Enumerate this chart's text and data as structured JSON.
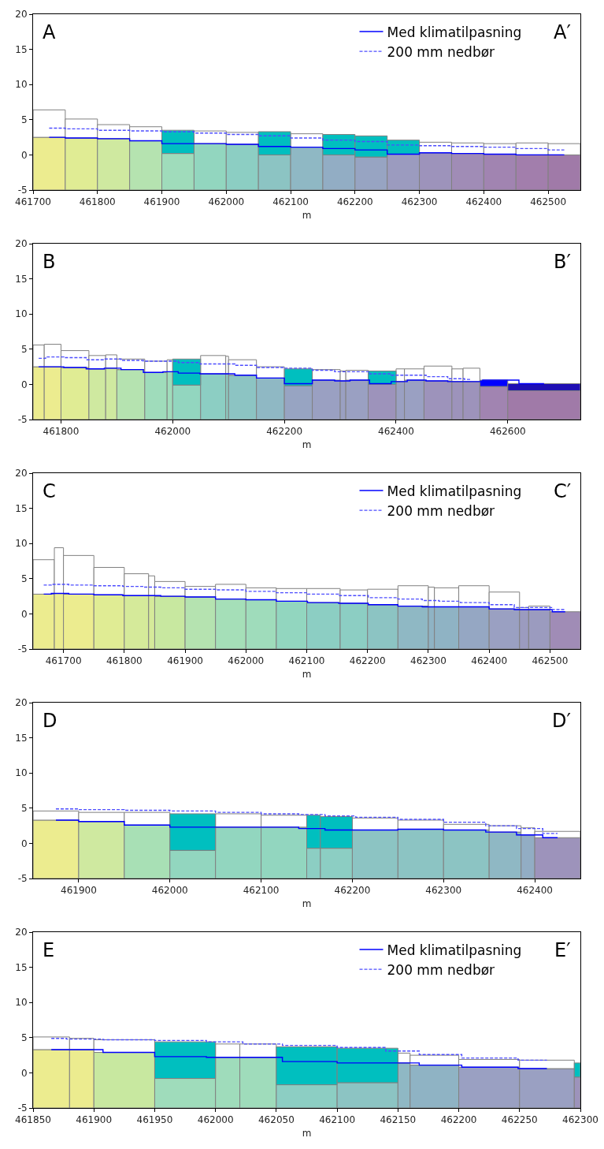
{
  "chart_data": [
    {
      "type": "bar",
      "xlabel": "m",
      "annotations": [
        "A",
        "A′"
      ],
      "legend": "top right",
      "xlim": [
        461700,
        462550
      ],
      "xticks": [
        461700,
        461800,
        461900,
        462000,
        462100,
        462200,
        462300,
        462400,
        462500
      ],
      "ylim": [
        -5,
        20
      ],
      "yticks": [
        -5,
        0,
        5,
        10,
        15,
        20
      ],
      "x": [
        461725,
        461775,
        461825,
        461875,
        461925,
        461975,
        462025,
        462075,
        462125,
        462175,
        462225,
        462275,
        462325,
        462375,
        462425,
        462475,
        462525
      ],
      "series": [
        {
          "colors": [
            "#ecec8f",
            "#e0ec94",
            "#cfe9a0",
            "#b5e3b0",
            "#9fdcbb",
            "#92d6bf",
            "#8ccec3",
            "#8cc4c3",
            "#8fb8c4",
            "#92adc4",
            "#97a4c2",
            "#9b9bbf",
            "#9d93bb",
            "#a08cb6",
            "#a184b1",
            "#a27eac",
            "#a07aa8"
          ],
          "base": [
            -5,
            -5,
            -5,
            -5,
            -5,
            -5,
            -5,
            -5,
            -5,
            -5,
            -5,
            -5,
            -5,
            -5,
            -5,
            -5,
            -5
          ],
          "values": [
            7.5,
            7.4,
            7.3,
            7.0,
            5.2,
            6.6,
            6.5,
            5.0,
            6.1,
            5.0,
            4.7,
            5.1,
            5.3,
            5.2,
            5.1,
            5.0,
            5.0
          ]
        },
        {
          "color": "#ffffff",
          "base": [
            2.5,
            2.4,
            2.3,
            2.0,
            null,
            1.6,
            1.5,
            null,
            1.1,
            null,
            null,
            null,
            0.3,
            0.2,
            0.1,
            0.0,
            0.0
          ],
          "values": [
            3.9,
            2.7,
            2.0,
            2.0,
            null,
            1.8,
            1.7,
            null,
            1.9,
            null,
            null,
            null,
            1.5,
            1.5,
            1.5,
            1.7,
            1.6
          ]
        },
        {
          "color": "#00bfbf",
          "base": [
            null,
            null,
            null,
            null,
            0.2,
            null,
            null,
            0.0,
            null,
            0.0,
            -0.3,
            0.1,
            null,
            null,
            null,
            null,
            null
          ],
          "values": [
            null,
            null,
            null,
            null,
            3.3,
            null,
            null,
            3.3,
            null,
            2.9,
            3.0,
            2.0,
            null,
            null,
            null,
            null,
            null
          ]
        },
        {
          "type": "step",
          "name": "Med klimatilpasning",
          "color": "#0000ff",
          "line_style": "solid",
          "values": [
            2.5,
            2.4,
            2.3,
            2.0,
            1.6,
            1.6,
            1.5,
            1.2,
            1.1,
            0.9,
            0.7,
            0.1,
            0.3,
            0.2,
            0.1,
            0.0,
            0.0
          ]
        },
        {
          "type": "step",
          "name": "200 mm nedbør",
          "color": "#4d4dff",
          "line_style": "dashed",
          "values": [
            3.8,
            3.7,
            3.5,
            3.4,
            3.3,
            3.1,
            2.9,
            2.7,
            2.4,
            2.1,
            1.9,
            1.4,
            1.3,
            1.2,
            1.1,
            0.9,
            0.7
          ]
        }
      ]
    },
    {
      "type": "bar",
      "xlabel": "m",
      "annotations": [
        "B",
        "B′"
      ],
      "xlim": [
        461750,
        462730
      ],
      "xticks": [
        461800,
        462000,
        462200,
        462400,
        462600
      ],
      "ylim": [
        -5,
        20
      ],
      "yticks": [
        -5,
        0,
        5,
        10,
        15,
        20
      ],
      "x": [
        461760,
        461785,
        461825,
        461865,
        461890,
        461925,
        461970,
        461995,
        462025,
        462072.5,
        462097.5,
        462125,
        462175,
        462225,
        462275,
        462305,
        462330,
        462375,
        462407.5,
        462432.5,
        462475,
        462510,
        462535,
        462575,
        462665
      ],
      "series": [
        {
          "colors": [
            "#ecec8f",
            "#ecec8f",
            "#e0ec94",
            "#cfe9a0",
            "#cfe9a0",
            "#b5e3b0",
            "#9fdcbb",
            "#9fdcbb",
            "#92d6bf",
            "#8ccec3",
            "#8ccec3",
            "#8cc4c3",
            "#8fb8c4",
            "#97a4c2",
            "#9aa0c2",
            "#9aa0c2",
            "#9aa0c2",
            "#9d93bb",
            "#9aa0c2",
            "#9aa0c2",
            "#9d93bb",
            "#9d93bb",
            "#9d93bb",
            "#a184b1",
            "#a07aa8"
          ],
          "base": [
            -5,
            -5,
            -5,
            -5,
            -5,
            -5,
            -5,
            -5,
            -5,
            -5,
            -5,
            -5,
            -5,
            -5,
            -5,
            -5,
            -5,
            -5,
            -5,
            -5,
            -5,
            -5,
            -5,
            -5,
            -5
          ],
          "values": [
            7.5,
            7.5,
            7.4,
            7.2,
            7.3,
            7.1,
            6.7,
            6.8,
            4.9,
            6.5,
            6.5,
            6.3,
            5.9,
            4.8,
            5.6,
            5.5,
            5.6,
            5.0,
            5.4,
            5.6,
            5.5,
            5.4,
            5.4,
            4.7,
            4.1
          ]
        },
        {
          "color": "#ffffff",
          "base": [
            2.5,
            2.5,
            2.4,
            2.2,
            2.3,
            2.1,
            1.7,
            1.8,
            null,
            1.5,
            1.5,
            1.3,
            0.9,
            null,
            0.6,
            0.5,
            0.6,
            null,
            0.4,
            0.6,
            0.5,
            0.4,
            0.4,
            null,
            null
          ],
          "values": [
            3.1,
            3.2,
            2.4,
            1.9,
            1.9,
            1.5,
            1.6,
            1.7,
            null,
            2.6,
            2.5,
            2.2,
            1.6,
            null,
            1.5,
            1.4,
            1.4,
            null,
            1.8,
            1.6,
            2.1,
            1.8,
            1.9,
            null,
            null
          ]
        },
        {
          "colors": [
            null,
            null,
            null,
            null,
            null,
            null,
            null,
            null,
            "#00bfbf",
            null,
            null,
            null,
            null,
            "#00bfbf",
            null,
            null,
            null,
            "#00bfbf",
            null,
            null,
            null,
            null,
            null,
            "#0000ff",
            "#1f0fb4"
          ],
          "base": [
            null,
            null,
            null,
            null,
            null,
            null,
            null,
            null,
            -0.1,
            null,
            null,
            null,
            null,
            -0.2,
            null,
            null,
            null,
            0.0,
            null,
            null,
            null,
            null,
            null,
            -0.3,
            -0.9
          ],
          "values": [
            null,
            null,
            null,
            null,
            null,
            null,
            null,
            null,
            3.7,
            null,
            null,
            null,
            null,
            2.4,
            null,
            null,
            null,
            1.9,
            null,
            null,
            null,
            null,
            null,
            0.9,
            1.0
          ]
        },
        {
          "type": "step",
          "color": "#0000ff",
          "line_style": "solid",
          "values": [
            2.5,
            2.5,
            2.4,
            2.2,
            2.3,
            2.1,
            1.7,
            1.8,
            1.6,
            1.5,
            1.5,
            1.3,
            0.9,
            0.1,
            0.6,
            0.5,
            0.6,
            0.1,
            0.4,
            0.6,
            0.5,
            0.4,
            0.4,
            0.6,
            0.1
          ]
        },
        {
          "type": "step",
          "color": "#4d4dff",
          "line_style": "dashed",
          "values": [
            3.7,
            3.9,
            3.8,
            3.5,
            3.6,
            3.4,
            3.3,
            3.3,
            3.1,
            2.9,
            2.9,
            2.7,
            2.4,
            2.3,
            2.0,
            1.8,
            1.8,
            1.5,
            1.3,
            1.3,
            1.1,
            0.8,
            0.7,
            null,
            null
          ]
        }
      ]
    },
    {
      "type": "bar",
      "xlabel": "m",
      "annotations": [
        "C",
        "C′"
      ],
      "legend": "top right",
      "xlim": [
        461650,
        462550
      ],
      "xticks": [
        461700,
        461800,
        461900,
        462000,
        462100,
        462200,
        462300,
        462400,
        462500
      ],
      "ylim": [
        -5,
        20
      ],
      "yticks": [
        -5,
        0,
        5,
        10,
        15,
        20
      ],
      "x": [
        461667.5,
        461692.5,
        461725,
        461775,
        461820,
        461845,
        461875,
        461925,
        461975,
        462025,
        462075,
        462127.5,
        462177.5,
        462225,
        462275,
        462305,
        462330,
        462375,
        462425,
        462457.5,
        462482.5,
        462525
      ],
      "series": [
        {
          "colors": [
            "#ecec8f",
            "#ecec8f",
            "#ecec8f",
            "#e0ec94",
            "#d5ea9a",
            "#d5ea9a",
            "#c8e8a0",
            "#b5e3b0",
            "#a5dfb8",
            "#9fdcbb",
            "#92d6bf",
            "#8ccec3",
            "#8ccec3",
            "#8cc4c3",
            "#8fb8c4",
            "#8fb3c4",
            "#8fb3c4",
            "#95a7c3",
            "#9aa0c2",
            "#9b9bbf",
            "#9b9bbf",
            "#a08cb6"
          ],
          "base": [
            -5,
            -5,
            -5,
            -5,
            -5,
            -5,
            -5,
            -5,
            -5,
            -5,
            -5,
            -5,
            -5,
            -5,
            -5,
            -5,
            -5,
            -5,
            -5,
            -5,
            -5,
            -5
          ],
          "values": [
            7.8,
            7.9,
            7.8,
            7.7,
            7.6,
            7.6,
            7.5,
            7.4,
            7.1,
            7.0,
            6.8,
            6.6,
            6.5,
            6.3,
            6.1,
            6.0,
            6.0,
            6.0,
            5.7,
            5.6,
            5.6,
            5.3
          ]
        },
        {
          "color": "#ffffff",
          "base": [
            2.8,
            2.9,
            2.8,
            2.7,
            2.6,
            2.6,
            2.5,
            2.4,
            2.1,
            2.0,
            1.8,
            1.6,
            1.5,
            1.3,
            1.1,
            1.0,
            1.0,
            1.0,
            0.7,
            0.6,
            0.6,
            null
          ],
          "values": [
            4.9,
            6.5,
            5.5,
            3.9,
            3.1,
            2.8,
            2.1,
            1.5,
            2.1,
            1.7,
            1.8,
            2.0,
            1.9,
            2.2,
            2.9,
            2.8,
            2.7,
            3.0,
            2.4,
            0.3,
            0.5,
            null
          ]
        },
        {
          "type": "step",
          "name": "Med klimatilpasning",
          "color": "#0000ff",
          "line_style": "solid",
          "values": [
            2.8,
            2.9,
            2.8,
            2.7,
            2.6,
            2.6,
            2.5,
            2.4,
            2.1,
            2.0,
            1.8,
            1.6,
            1.5,
            1.3,
            1.1,
            1.0,
            1.0,
            1.0,
            0.7,
            0.6,
            0.6,
            0.3
          ]
        },
        {
          "type": "step",
          "name": "200 mm nedbør",
          "color": "#4d4dff",
          "line_style": "dashed",
          "values": [
            4.1,
            4.2,
            4.1,
            4.0,
            3.9,
            3.8,
            3.7,
            3.5,
            3.4,
            3.2,
            3.0,
            2.8,
            2.6,
            2.3,
            2.1,
            1.9,
            1.8,
            1.6,
            1.3,
            0.9,
            0.9,
            0.6
          ]
        }
      ]
    },
    {
      "type": "bar",
      "xlabel": "m",
      "annotations": [
        "D",
        "D′"
      ],
      "xlim": [
        461850,
        462450
      ],
      "xticks": [
        461900,
        462000,
        462100,
        462200,
        462300,
        462400
      ],
      "ylim": [
        -5,
        20
      ],
      "yticks": [
        -5,
        0,
        5,
        10,
        15,
        20
      ],
      "x": [
        461875,
        461925,
        461975,
        462025,
        462075,
        462125,
        462157.5,
        462182.5,
        462225,
        462275,
        462325,
        462367.5,
        462392.5,
        462425
      ],
      "series": [
        {
          "colors": [
            "#ecec8f",
            "#cfe9a0",
            "#a8e0b5",
            "#92d6bf",
            "#92d6bf",
            "#92d6bf",
            "#8ccec3",
            "#8ccec3",
            "#8cc4c3",
            "#8cc4c3",
            "#8cc4c3",
            "#8fb8c4",
            "#92adc4",
            "#9d93bb"
          ],
          "base": [
            -5,
            -5,
            -5,
            -5,
            -5,
            -5,
            -5,
            -5,
            -5,
            -5,
            -5,
            -5,
            -5,
            -5
          ],
          "values": [
            8.3,
            8.1,
            7.6,
            4.0,
            7.3,
            7.3,
            4.3,
            4.3,
            6.9,
            7.0,
            6.9,
            6.6,
            6.2,
            5.8
          ]
        },
        {
          "color": "#ffffff",
          "base": [
            3.3,
            3.1,
            2.6,
            null,
            2.3,
            2.3,
            null,
            null,
            1.9,
            2.0,
            1.9,
            1.6,
            1.2,
            0.8
          ],
          "values": [
            1.3,
            1.3,
            1.8,
            null,
            1.9,
            1.7,
            null,
            null,
            1.7,
            1.3,
            0.8,
            0.9,
            1.0,
            0.9
          ]
        },
        {
          "color": "#00bfbf",
          "base": [
            null,
            null,
            null,
            -1.0,
            null,
            null,
            -0.7,
            -0.7,
            null,
            null,
            null,
            null,
            null,
            null
          ],
          "values": [
            null,
            null,
            null,
            5.2,
            null,
            null,
            4.7,
            4.5,
            null,
            null,
            null,
            null,
            null,
            null
          ]
        },
        {
          "type": "step",
          "color": "#0000ff",
          "line_style": "solid",
          "values": [
            3.3,
            3.1,
            2.6,
            2.3,
            2.3,
            2.3,
            2.1,
            1.9,
            1.9,
            2.0,
            1.9,
            1.6,
            1.2,
            0.8
          ]
        },
        {
          "type": "step",
          "color": "#4d4dff",
          "line_style": "dashed",
          "values": [
            4.9,
            4.8,
            4.7,
            4.6,
            4.4,
            4.2,
            4.1,
            3.9,
            3.7,
            3.4,
            3.0,
            2.5,
            2.1,
            1.4
          ]
        }
      ]
    },
    {
      "type": "bar",
      "xlabel": "m",
      "annotations": [
        "E",
        "E′"
      ],
      "legend": "top right",
      "xlim": [
        461850,
        462300
      ],
      "xticks": [
        461850,
        461900,
        461950,
        462000,
        462050,
        462100,
        462150,
        462200,
        462250,
        462300
      ],
      "ylim": [
        -5,
        20
      ],
      "yticks": [
        -5,
        0,
        5,
        10,
        15,
        20
      ],
      "x": [
        461865,
        461890,
        461925,
        461975,
        462010,
        462035,
        462075,
        462125,
        462155,
        462180,
        462225,
        462272.5,
        462297.5
      ],
      "series": [
        {
          "colors": [
            "#ecec8f",
            "#ecec8f",
            "#c8e8a0",
            "#9fdcbb",
            "#9fdcbb",
            "#9fdcbb",
            "#8ccec3",
            "#8cc4c3",
            "#8fb8c4",
            "#8fb3c4",
            "#9aa0c2",
            "#9aa0c2",
            "#9d93bb"
          ],
          "base": [
            -5,
            -5,
            -5,
            -5,
            -5,
            -5,
            -5,
            -5,
            -5,
            -5,
            -5,
            -5,
            -5
          ],
          "values": [
            8.3,
            8.3,
            7.9,
            4.2,
            7.2,
            7.2,
            3.3,
            3.6,
            6.4,
            6.1,
            5.8,
            5.6,
            4.4
          ]
        },
        {
          "color": "#ffffff",
          "base": [
            3.3,
            3.3,
            2.9,
            null,
            2.2,
            2.2,
            null,
            null,
            1.4,
            1.1,
            0.8,
            0.6,
            null
          ],
          "values": [
            1.8,
            1.6,
            1.8,
            null,
            1.9,
            1.9,
            null,
            null,
            1.4,
            1.4,
            1.1,
            1.2,
            null
          ]
        },
        {
          "color": "#00bfbf",
          "base": [
            null,
            null,
            null,
            -0.8,
            null,
            null,
            -1.7,
            -1.4,
            null,
            null,
            null,
            null,
            -0.6
          ],
          "values": [
            null,
            null,
            null,
            5.2,
            null,
            null,
            5.4,
            4.9,
            null,
            null,
            null,
            null,
            2.0
          ]
        },
        {
          "type": "step",
          "name": "Med klimatilpasning",
          "color": "#0000ff",
          "line_style": "solid",
          "values": [
            3.3,
            3.3,
            2.9,
            2.3,
            2.2,
            2.2,
            1.6,
            1.4,
            1.4,
            1.1,
            0.8,
            0.6,
            null
          ]
        },
        {
          "type": "step",
          "name": "200 mm nedbør",
          "color": "#4d4dff",
          "line_style": "dashed",
          "values": [
            4.9,
            4.8,
            4.7,
            4.6,
            4.4,
            4.1,
            3.9,
            3.6,
            3.1,
            2.6,
            2.1,
            1.8,
            null
          ]
        }
      ]
    }
  ]
}
